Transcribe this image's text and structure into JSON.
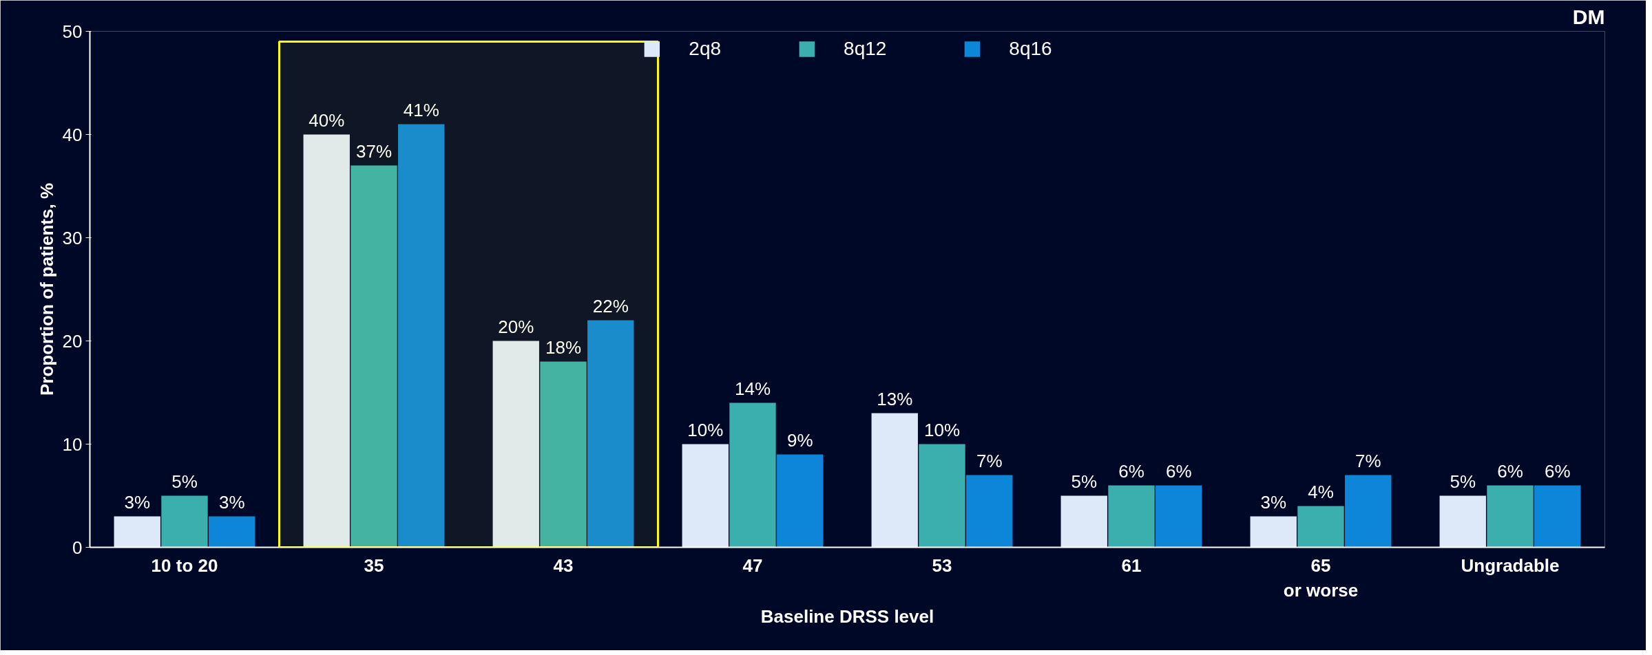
{
  "chart_data": {
    "type": "bar",
    "xlabel": "Baseline DRSS level",
    "ylabel": "Proportion of patients, %",
    "categories": [
      "10 to 20",
      "35",
      "43",
      "47",
      "53",
      "61",
      "65\nor worse",
      "Ungradable"
    ],
    "series": [
      {
        "name": "2q8",
        "color": "#dde9f8",
        "values": [
          3,
          40,
          20,
          10,
          13,
          5,
          3,
          5
        ],
        "value_labels": [
          "3%",
          "40%",
          "20%",
          "10%",
          "13%",
          "5%",
          "3%",
          "5%"
        ]
      },
      {
        "name": "8q12",
        "color": "#3aafad",
        "values": [
          5,
          37,
          18,
          14,
          10,
          6,
          4,
          6
        ],
        "value_labels": [
          "5%",
          "37%",
          "18%",
          "14%",
          "10%",
          "6%",
          "4%",
          "6%"
        ]
      },
      {
        "name": "8q16",
        "color": "#0d85d8",
        "values": [
          3,
          41,
          22,
          9,
          7,
          6,
          7,
          6
        ],
        "value_labels": [
          "3%",
          "41%",
          "22%",
          "9%",
          "7%",
          "6%",
          "7%",
          "6%"
        ]
      }
    ],
    "ylim": [
      0,
      50
    ],
    "yticks": [
      0,
      10,
      20,
      30,
      40,
      50
    ],
    "grid": false,
    "legend": "top",
    "bands": [
      {
        "axis": "x",
        "from": "35",
        "to": "43",
        "color": "#ffff00"
      }
    ],
    "annotations": [
      "DM"
    ]
  }
}
